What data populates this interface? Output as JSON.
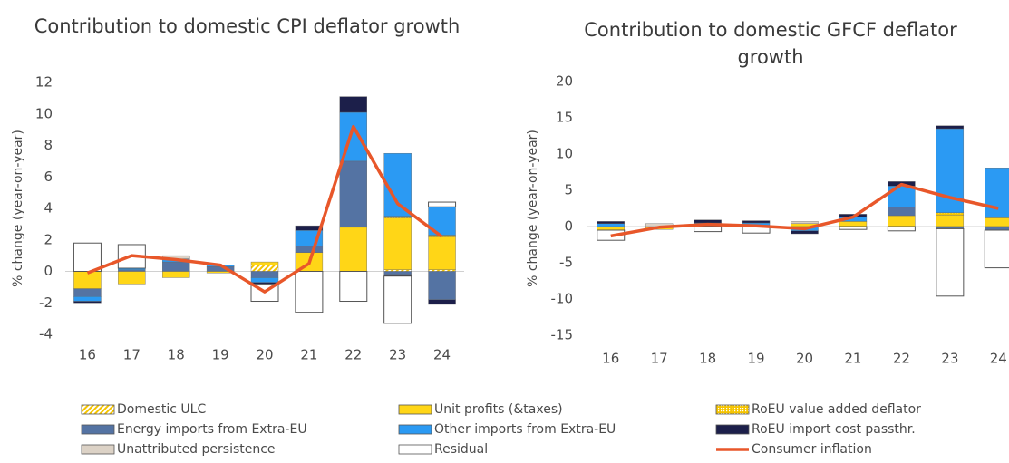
{
  "chart_data": [
    {
      "type": "bar",
      "stacked": true,
      "title": "Contribution to domestic CPI deflator growth",
      "y_label": "% change (year-on-year)",
      "categories": [
        "16",
        "17",
        "18",
        "19",
        "20",
        "21",
        "22",
        "23",
        "24"
      ],
      "ylim": [
        -4,
        12
      ],
      "yticks": [
        -4,
        -2,
        0,
        2,
        4,
        6,
        8,
        10,
        12
      ],
      "series": [
        {
          "name": "Domestic ULC",
          "color": "#f5c400",
          "pattern": "hatch",
          "values": [
            0,
            0,
            0,
            0,
            0.4,
            0,
            0,
            0.1,
            0.1
          ]
        },
        {
          "name": "Unit profits (&taxes)",
          "color": "#ffd617",
          "values": [
            -1.1,
            -0.8,
            -0.4,
            -0.1,
            0.2,
            1.2,
            2.8,
            3.3,
            2.1
          ]
        },
        {
          "name": "RoEU value added deflator",
          "color": "#f5c400",
          "pattern": "dots",
          "values": [
            0,
            0,
            0,
            0,
            0,
            0,
            0,
            0.1,
            0.1
          ]
        },
        {
          "name": "Energy imports from Extra-EU",
          "color": "#5473a3",
          "values": [
            -0.5,
            0.1,
            0.6,
            0.3,
            -0.4,
            0.4,
            4.2,
            -0.2,
            -1.8
          ]
        },
        {
          "name": "Other imports from Extra-EU",
          "color": "#2b9af3",
          "values": [
            -0.3,
            0.1,
            0.2,
            0.1,
            -0.3,
            1.0,
            3.1,
            4.0,
            1.8
          ]
        },
        {
          "name": "RoEU import cost passthr.",
          "color": "#1c1f4a",
          "values": [
            -0.1,
            0,
            0,
            0,
            -0.1,
            0.3,
            1.0,
            -0.1,
            -0.3
          ]
        },
        {
          "name": "Unattributed persistence",
          "color": "#dcd2c6",
          "values": [
            0,
            0,
            0.2,
            0,
            0,
            0,
            0,
            0,
            0
          ]
        },
        {
          "name": "Residual",
          "color": "#ffffff",
          "values": [
            1.8,
            1.5,
            0,
            0,
            -1.1,
            -2.6,
            -1.9,
            -3.0,
            0.3
          ]
        },
        {
          "name": "Consumer inflation",
          "color": "#e8572a",
          "type": "line",
          "values": [
            -0.1,
            1.0,
            0.75,
            0.4,
            -1.3,
            0.5,
            9.2,
            4.3,
            2.2
          ]
        }
      ]
    },
    {
      "type": "bar",
      "stacked": true,
      "title": "Contribution to domestic GFCF deflator growth",
      "y_label": "% change (year-on-year)",
      "categories": [
        "16",
        "17",
        "18",
        "19",
        "20",
        "21",
        "22",
        "23",
        "24"
      ],
      "ylim": [
        -15,
        20
      ],
      "yticks": [
        -15,
        -10,
        -5,
        0,
        5,
        10,
        15,
        20
      ],
      "series": [
        {
          "name": "Domestic ULC",
          "color": "#f5c400",
          "pattern": "hatch",
          "values": [
            0,
            0,
            0,
            0,
            0,
            0,
            0,
            0,
            0
          ]
        },
        {
          "name": "Unit profits (&taxes)",
          "color": "#ffd617",
          "values": [
            -0.5,
            -0.4,
            0,
            0,
            0.4,
            0.7,
            1.5,
            1.6,
            1.2
          ]
        },
        {
          "name": "RoEU value added deflator",
          "color": "#f5c400",
          "pattern": "dots",
          "values": [
            0,
            0,
            0,
            0,
            0,
            0,
            0,
            0.3,
            0
          ]
        },
        {
          "name": "Energy imports from Extra-EU",
          "color": "#5473a3",
          "values": [
            0,
            0,
            0.5,
            0,
            0,
            0,
            1.2,
            -0.3,
            -0.5
          ]
        },
        {
          "name": "Other imports from Extra-EU",
          "color": "#2b9af3",
          "values": [
            0.4,
            0,
            0,
            0.5,
            -0.6,
            0.6,
            2.9,
            11.6,
            6.9
          ]
        },
        {
          "name": "RoEU import cost passthr.",
          "color": "#1c1f4a",
          "values": [
            0.3,
            0,
            0.4,
            0.3,
            -0.4,
            0.4,
            0.6,
            0.4,
            0
          ]
        },
        {
          "name": "Unattributed persistence",
          "color": "#dcd2c6",
          "values": [
            0,
            0.4,
            0,
            0,
            0.3,
            0,
            0,
            0,
            0
          ]
        },
        {
          "name": "Residual",
          "color": "#ffffff",
          "values": [
            -1.4,
            0,
            -0.7,
            -0.9,
            0,
            -0.4,
            -0.6,
            -9.3,
            -5.2
          ]
        },
        {
          "name": "Consumer inflation",
          "color": "#e8572a",
          "type": "line",
          "values": [
            -1.3,
            -0.1,
            0.3,
            0.1,
            -0.3,
            1.3,
            5.8,
            4.0,
            2.5
          ]
        }
      ]
    }
  ]
}
